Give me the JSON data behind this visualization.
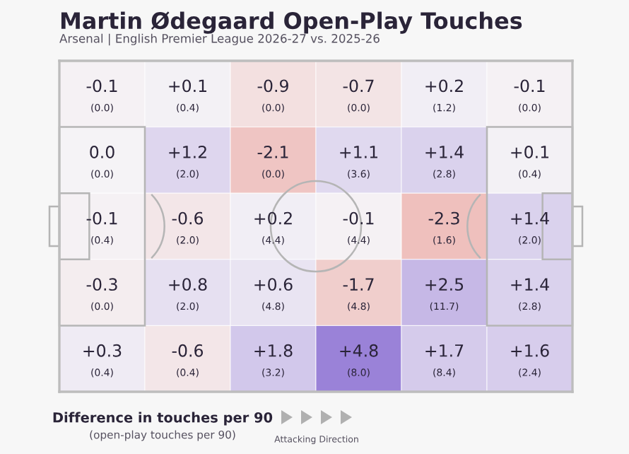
{
  "chart_data": {
    "type": "heatmap",
    "title": "Martin Ødegaard Open-Play Touches",
    "subtitle": "Arsenal | English Premier League 2026-27 vs. 2025-26",
    "categories": [
      null,
      null,
      null,
      null,
      null,
      null
    ],
    "y_categories": [
      null,
      null,
      null,
      null,
      null
    ],
    "cells": [
      [
        -0.1,
        0.1,
        -0.9,
        -0.7,
        0.2,
        -0.1
      ],
      [
        0.0,
        1.2,
        -2.1,
        1.1,
        1.4,
        0.1
      ],
      [
        -0.1,
        -0.6,
        0.2,
        -0.1,
        -2.3,
        1.4
      ],
      [
        -0.3,
        0.8,
        0.6,
        -1.7,
        2.5,
        1.4
      ],
      [
        0.3,
        -0.6,
        1.8,
        4.8,
        1.7,
        1.6
      ]
    ],
    "cell_labels": [
      [
        "-0.1",
        "+0.1",
        "-0.9",
        "-0.7",
        "+0.2",
        "-0.1"
      ],
      [
        "0.0",
        "+1.2",
        "-2.1",
        "+1.1",
        "+1.4",
        "+0.1"
      ],
      [
        "-0.1",
        "-0.6",
        "+0.2",
        "-0.1",
        "-2.3",
        "+1.4"
      ],
      [
        "-0.3",
        "+0.8",
        "+0.6",
        "-1.7",
        "+2.5",
        "+1.4"
      ],
      [
        "+0.3",
        "-0.6",
        "+1.8",
        "+4.8",
        "+1.7",
        "+1.6"
      ]
    ],
    "annotations": [
      "(0.0)",
      "(0.4)",
      "(0.0)",
      "(0.0)",
      "(1.2)",
      "(0.0)",
      "(0.0)",
      "(2.0)",
      "(0.0)",
      "(3.6)",
      "(2.8)",
      "(0.4)",
      "(0.4)",
      "(2.0)",
      "(4.4)",
      "(4.4)",
      "(1.6)",
      "(2.0)",
      "(0.0)",
      "(2.0)",
      "(4.8)",
      "(4.8)",
      "(11.7)",
      "(2.8)",
      "(0.4)",
      "(0.4)",
      "(3.2)",
      "(8.0)",
      "(8.4)",
      "(2.4)",
      "Difference in touches per 90",
      "(open-play touches per 90)",
      "Attacking Direction"
    ]
  }
}
